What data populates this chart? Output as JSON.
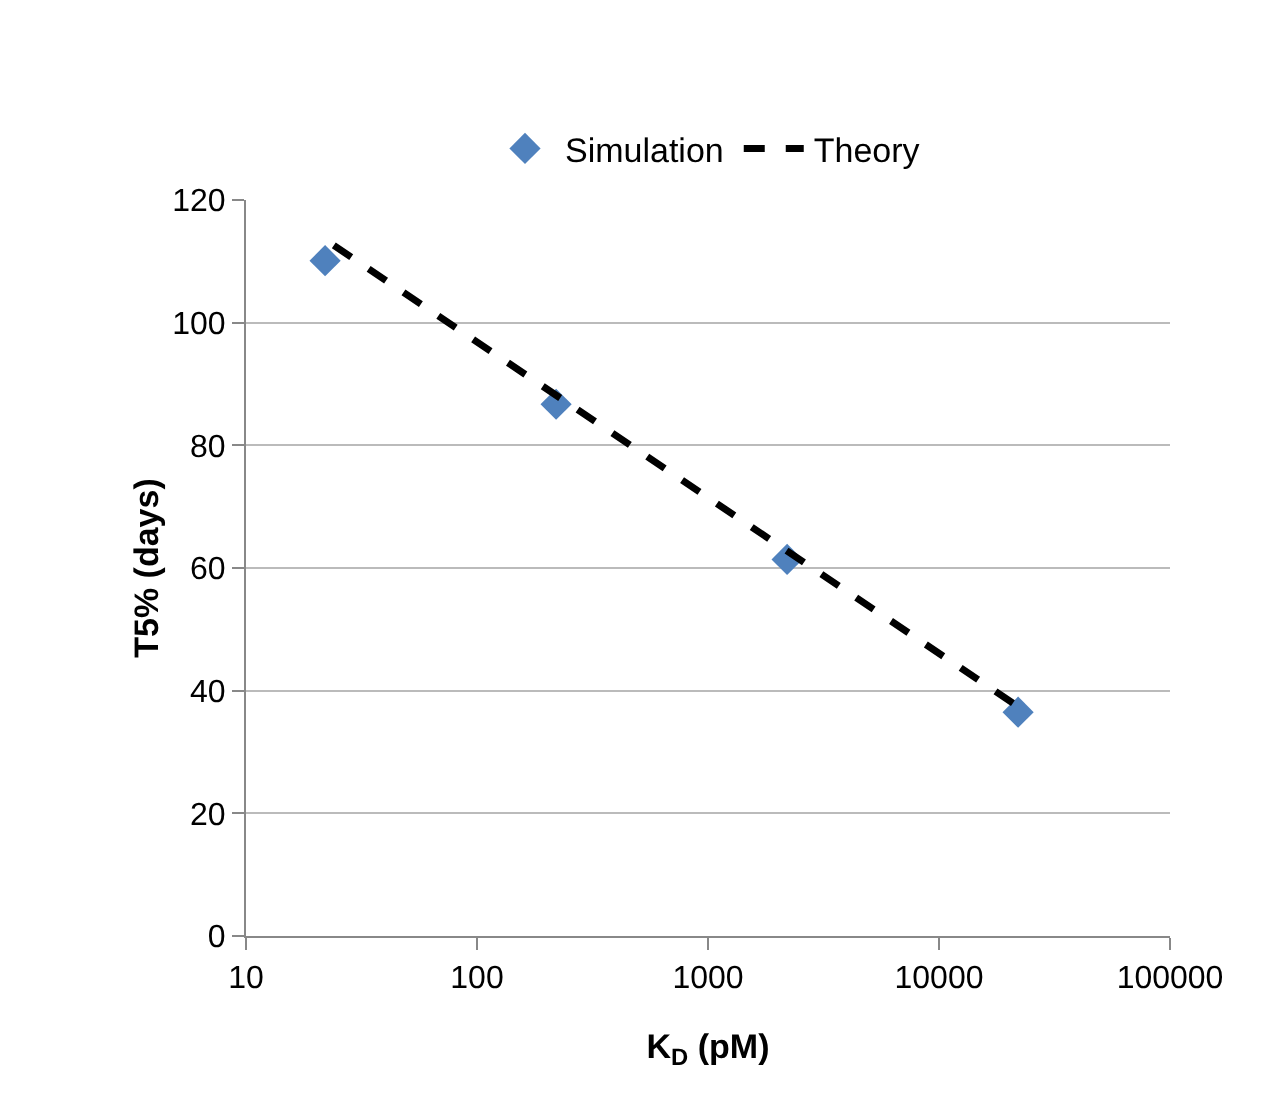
{
  "chart_data": {
    "type": "scatter",
    "xlabel": "K$_{D}$ (pM)",
    "ylabel": "T5% (days)",
    "log": "x",
    "xlim": [
      10,
      100000
    ],
    "xticks": [
      10,
      100,
      1000,
      10000,
      100000
    ],
    "ylim": [
      0,
      120
    ],
    "yticks": [
      0,
      20,
      40,
      60,
      80,
      100,
      120
    ],
    "grid": "y",
    "legend": "top",
    "series": [
      {
        "name": "Simulation",
        "color": "#4f81bd",
        "marker": "diamond",
        "x": [
          22,
          220,
          2200,
          22000
        ],
        "values": [
          110.1,
          86.7,
          61.4,
          36.5
        ]
      },
      {
        "name": "Theory",
        "type": "line",
        "color": "#000000",
        "line_style": "dashed",
        "marker": "none",
        "x": [
          24,
          21000
        ],
        "values": [
          112.6,
          37.9
        ]
      }
    ]
  }
}
